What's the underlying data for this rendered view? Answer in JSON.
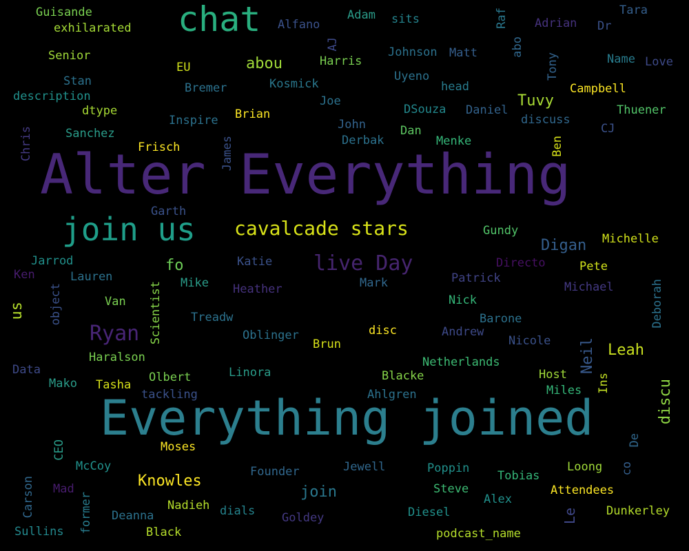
{
  "words": [
    {
      "text": "Alter Everything",
      "color": "#482878"
    },
    {
      "text": "Everything joined",
      "color": "#2c7f8e"
    },
    {
      "text": "chat",
      "color": "#29af7f"
    },
    {
      "text": "join us",
      "color": "#1f9e89"
    },
    {
      "text": "cavalcade stars",
      "color": "#d8e219"
    },
    {
      "text": "live Day",
      "color": "#46256f"
    },
    {
      "text": "Ryan",
      "color": "#482576"
    },
    {
      "text": "Leah",
      "color": "#c9e020"
    },
    {
      "text": "Digan",
      "color": "#355f8d"
    },
    {
      "text": "Tuvy",
      "color": "#a8db34"
    },
    {
      "text": "Knowles",
      "color": "#fde725"
    },
    {
      "text": "abou",
      "color": "#a0da39"
    },
    {
      "text": "join",
      "color": "#2a788e"
    },
    {
      "text": "fo",
      "color": "#6ece58"
    },
    {
      "text": "us",
      "color": "#b5de2b"
    },
    {
      "text": "discu",
      "color": "#8fd744"
    },
    {
      "text": "Neil",
      "color": "#38598c"
    },
    {
      "text": "Le",
      "color": "#3f4788"
    },
    {
      "text": "Guisande",
      "color": "#7ad151"
    },
    {
      "text": "exhilarated",
      "color": "#a5db36"
    },
    {
      "text": "Senior",
      "color": "#a0da39"
    },
    {
      "text": "Stan",
      "color": "#2c728e"
    },
    {
      "text": "description",
      "color": "#21918c"
    },
    {
      "text": "dtype",
      "color": "#a8db34"
    },
    {
      "text": "Sanchez",
      "color": "#2a9d8a"
    },
    {
      "text": "Frisch",
      "color": "#fde725"
    },
    {
      "text": "Chris",
      "color": "#443a83"
    },
    {
      "text": "Adam",
      "color": "#2a9d8a"
    },
    {
      "text": "sits",
      "color": "#25848e"
    },
    {
      "text": "Alfano",
      "color": "#3b528b"
    },
    {
      "text": "AJ",
      "color": "#3e4989"
    },
    {
      "text": "Raf",
      "color": "#2a788e"
    },
    {
      "text": "Adrian",
      "color": "#46327e"
    },
    {
      "text": "Dr",
      "color": "#3b528b"
    },
    {
      "text": "Tara",
      "color": "#355f8d"
    },
    {
      "text": "Name",
      "color": "#287c8e"
    },
    {
      "text": "Love",
      "color": "#3e4a89"
    },
    {
      "text": "Johnson",
      "color": "#2c728e"
    },
    {
      "text": "Matt",
      "color": "#355f8d"
    },
    {
      "text": "abo",
      "color": "#31688e"
    },
    {
      "text": "Tony",
      "color": "#33638d"
    },
    {
      "text": "EU",
      "color": "#d2e21b"
    },
    {
      "text": "Harris",
      "color": "#7ad151"
    },
    {
      "text": "Bremer",
      "color": "#2c728e"
    },
    {
      "text": "Kosmick",
      "color": "#2a788e"
    },
    {
      "text": "Uyeno",
      "color": "#2c728e"
    },
    {
      "text": "head",
      "color": "#287c8e"
    },
    {
      "text": "Campbell",
      "color": "#fde725"
    },
    {
      "text": "Joe",
      "color": "#2c728e"
    },
    {
      "text": "DSouza",
      "color": "#23898e"
    },
    {
      "text": "Daniel",
      "color": "#33638d"
    },
    {
      "text": "discuss",
      "color": "#31688e"
    },
    {
      "text": "Thuener",
      "color": "#52c569"
    },
    {
      "text": "Brian",
      "color": "#fde725"
    },
    {
      "text": "Inspire",
      "color": "#2c728e"
    },
    {
      "text": "John",
      "color": "#33638d"
    },
    {
      "text": "Dan",
      "color": "#5ec962"
    },
    {
      "text": "CJ",
      "color": "#3b528b"
    },
    {
      "text": "James",
      "color": "#3b528b"
    },
    {
      "text": "Derbak",
      "color": "#2c728e"
    },
    {
      "text": "Menke",
      "color": "#35b779"
    },
    {
      "text": "Ben",
      "color": "#d8e219"
    },
    {
      "text": "Garth",
      "color": "#3b528b"
    },
    {
      "text": "Gundy",
      "color": "#52c569"
    },
    {
      "text": "Michelle",
      "color": "#d2e21b"
    },
    {
      "text": "Jarrod",
      "color": "#21918c"
    },
    {
      "text": "Katie",
      "color": "#3b528b"
    },
    {
      "text": "Directo",
      "color": "#471063"
    },
    {
      "text": "Pete",
      "color": "#d2e21b"
    },
    {
      "text": "Ken",
      "color": "#481c6e"
    },
    {
      "text": "Lauren",
      "color": "#2c728e"
    },
    {
      "text": "Patrick",
      "color": "#414487"
    },
    {
      "text": "Deborah",
      "color": "#2c728e"
    },
    {
      "text": "object",
      "color": "#3b528b"
    },
    {
      "text": "Scientist",
      "color": "#86d549"
    },
    {
      "text": "Mike",
      "color": "#2a9d8a"
    },
    {
      "text": "Heather",
      "color": "#46327e"
    },
    {
      "text": "Mark",
      "color": "#31688e"
    },
    {
      "text": "Michael",
      "color": "#443983"
    },
    {
      "text": "Van",
      "color": "#7ad151"
    },
    {
      "text": "Nick",
      "color": "#35b779"
    },
    {
      "text": "Treadw",
      "color": "#2c728e"
    },
    {
      "text": "Barone",
      "color": "#2c728e"
    },
    {
      "text": "Oblinger",
      "color": "#2c728e"
    },
    {
      "text": "disc",
      "color": "#fde725"
    },
    {
      "text": "Andrew",
      "color": "#3e4a89"
    },
    {
      "text": "Brun",
      "color": "#d8e219"
    },
    {
      "text": "Nicole",
      "color": "#3b528b"
    },
    {
      "text": "Haralson",
      "color": "#7ad151"
    },
    {
      "text": "Data",
      "color": "#3e4a89"
    },
    {
      "text": "Netherlands",
      "color": "#3dbc74"
    },
    {
      "text": "Linora",
      "color": "#2a9d8a"
    },
    {
      "text": "Olbert",
      "color": "#7ad151"
    },
    {
      "text": "Blacke",
      "color": "#86d549"
    },
    {
      "text": "Host",
      "color": "#a0da39"
    },
    {
      "text": "Ins",
      "color": "#c2df23"
    },
    {
      "text": "Mako",
      "color": "#2a9d8a"
    },
    {
      "text": "Tasha",
      "color": "#d8e219"
    },
    {
      "text": "tackling",
      "color": "#3b528b"
    },
    {
      "text": "Ahlgren",
      "color": "#2c728e"
    },
    {
      "text": "Miles",
      "color": "#35b779"
    },
    {
      "text": "CEO",
      "color": "#2a9d8a"
    },
    {
      "text": "De",
      "color": "#31688e"
    },
    {
      "text": "Moses",
      "color": "#fde725"
    },
    {
      "text": "McCoy",
      "color": "#21918c"
    },
    {
      "text": "Founder",
      "color": "#31688e"
    },
    {
      "text": "Jewell",
      "color": "#31688e"
    },
    {
      "text": "Poppin",
      "color": "#21918c"
    },
    {
      "text": "Tobias",
      "color": "#35b779"
    },
    {
      "text": "Loong",
      "color": "#a0da39"
    },
    {
      "text": "co",
      "color": "#355f8d"
    },
    {
      "text": "Carson",
      "color": "#31688e"
    },
    {
      "text": "Mad",
      "color": "#481c6e"
    },
    {
      "text": "former",
      "color": "#287c8e"
    },
    {
      "text": "Nadieh",
      "color": "#b5de2b"
    },
    {
      "text": "dials",
      "color": "#25848e"
    },
    {
      "text": "Steve",
      "color": "#3dbc74"
    },
    {
      "text": "Alex",
      "color": "#21918c"
    },
    {
      "text": "Attendees",
      "color": "#fde725"
    },
    {
      "text": "Deanna",
      "color": "#2c728e"
    },
    {
      "text": "Goldey",
      "color": "#443983"
    },
    {
      "text": "Diesel",
      "color": "#21918c"
    },
    {
      "text": "Dunkerley",
      "color": "#b5de2b"
    },
    {
      "text": "Sullins",
      "color": "#23898e"
    },
    {
      "text": "Black",
      "color": "#b5de2b"
    },
    {
      "text": "podcast_name",
      "color": "#b5de2b"
    }
  ]
}
